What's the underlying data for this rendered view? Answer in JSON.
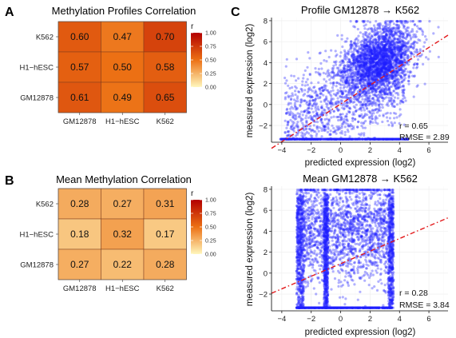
{
  "panels": {
    "A": "A",
    "B": "B",
    "C": "C"
  },
  "colors": {
    "scale_low": "#fff7bc",
    "scale_mid": "#ec7014",
    "scale_high": "#b30000",
    "points": "#1f1fff",
    "fit_line": "#e31a1c"
  },
  "chart_data": [
    {
      "type": "heatmap",
      "panel": "A",
      "title": "Methylation Profiles Correlation",
      "x_categories": [
        "GM12878",
        "H1−hESC",
        "K562"
      ],
      "y_categories": [
        "K562",
        "H1−hESC",
        "GM12878"
      ],
      "values": [
        [
          0.6,
          0.47,
          0.7
        ],
        [
          0.57,
          0.5,
          0.58
        ],
        [
          0.61,
          0.49,
          0.65
        ]
      ],
      "value_labels": [
        [
          "0.60",
          "0.47",
          "0.70"
        ],
        [
          "0.57",
          "0.50",
          "0.58"
        ],
        [
          "0.61",
          "0.49",
          "0.65"
        ]
      ],
      "legend": {
        "title": "r",
        "range": [
          0,
          1
        ],
        "ticks": [
          "1.00",
          "0.75",
          "0.50",
          "0.25",
          "0.00"
        ],
        "placement": "right"
      }
    },
    {
      "type": "heatmap",
      "panel": "B",
      "title": "Mean Methylation Correlation",
      "x_categories": [
        "GM12878",
        "H1−hESC",
        "K562"
      ],
      "y_categories": [
        "K562",
        "H1−hESC",
        "GM12878"
      ],
      "values": [
        [
          0.28,
          0.27,
          0.31
        ],
        [
          0.18,
          0.32,
          0.17
        ],
        [
          0.27,
          0.22,
          0.28
        ]
      ],
      "value_labels": [
        [
          "0.28",
          "0.27",
          "0.31"
        ],
        [
          "0.18",
          "0.32",
          "0.17"
        ],
        [
          "0.27",
          "0.22",
          "0.28"
        ]
      ],
      "legend": {
        "title": "r",
        "range": [
          0,
          1
        ],
        "ticks": [
          "1.00",
          "0.75",
          "0.50",
          "0.25",
          "0.00"
        ],
        "placement": "right"
      }
    },
    {
      "type": "scatter",
      "panel": "C-top",
      "title": "Profile GM12878 → K562",
      "xlabel": "predicted expression (log2)",
      "ylabel": "measured expression (log2)",
      "xlim": [
        -4.7,
        7.3
      ],
      "ylim": [
        -3.6,
        8.3
      ],
      "xticks": [
        -4,
        -2,
        0,
        2,
        4,
        6
      ],
      "yticks": [
        -2,
        0,
        2,
        4,
        6,
        8
      ],
      "fit_line": {
        "intercept": 0.05,
        "slope": 0.9,
        "style": "dash-dot"
      },
      "annotation": [
        "r = 0.65",
        "RMSE = 2.89"
      ],
      "point_model": {
        "count": 4200,
        "seed": 11,
        "floor_y": -3.3,
        "x_range": [
          -4.1,
          4.6
        ],
        "center_x": 2.6,
        "center_y": 4.2
      }
    },
    {
      "type": "scatter",
      "panel": "C-bottom",
      "title": "Mean GM12878 → K562",
      "xlabel": "predicted expression (log2)",
      "ylabel": "measured expression (log2)",
      "xlim": [
        -4.7,
        7.3
      ],
      "ylim": [
        -3.6,
        8.3
      ],
      "xticks": [
        -4,
        -2,
        0,
        2,
        4,
        6
      ],
      "yticks": [
        -2,
        0,
        2,
        4,
        6,
        8
      ],
      "fit_line": {
        "intercept": 0.9,
        "slope": 0.6,
        "style": "dash-dot"
      },
      "annotation": [
        "r = 0.28",
        "RMSE = 3.84"
      ],
      "point_model": {
        "count": 4200,
        "seed": 29,
        "floor_y": -3.3,
        "x_range": [
          -3.0,
          3.6
        ],
        "stripe_x": -1.0,
        "center_y": 4.0
      }
    }
  ]
}
